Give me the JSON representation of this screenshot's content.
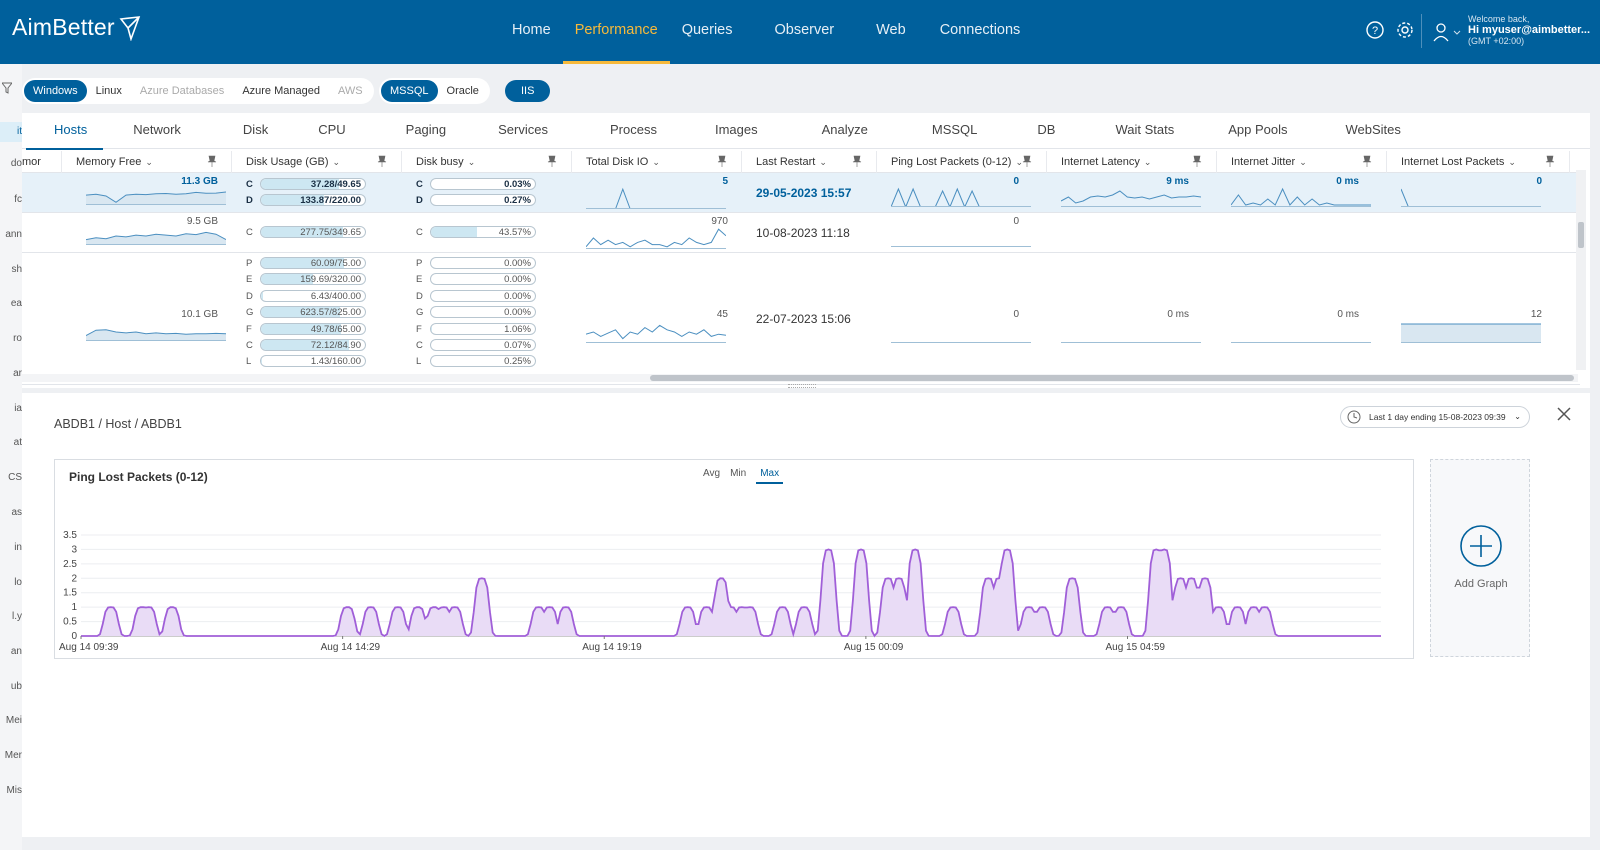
{
  "brand": "AimBetter",
  "nav": [
    "Home",
    "Performance",
    "Queries",
    "Observer",
    "Web",
    "Connections"
  ],
  "user": {
    "welcome": "Welcome back,",
    "name": "Hi myuser@aimbetter...",
    "tz": "(GMT +02:00)"
  },
  "left_stubs": [
    "it",
    "do",
    "fc",
    "ann",
    "sh",
    "ea",
    "ro",
    "ar",
    "ia",
    "at",
    "CS",
    "as",
    "in",
    "lo",
    "l.y",
    "an",
    "ub",
    "Mei",
    "Mer",
    "Mis"
  ],
  "os_pills": [
    "Windows",
    "Linux",
    "Azure Databases",
    "Azure Managed",
    "AWS"
  ],
  "db_pills": [
    "MSSQL",
    "Oracle"
  ],
  "iis_pill": "IIS",
  "tabs": [
    "Hosts",
    "Network",
    "Disk",
    "CPU",
    "Paging",
    "Services",
    "Process",
    "Images",
    "Analyze",
    "MSSQL",
    "DB",
    "Wait Stats",
    "App Pools",
    "WebSites"
  ],
  "columns": [
    "mor",
    "Memory Free",
    "Disk Usage (GB)",
    "Disk busy",
    "Total Disk IO",
    "Last Restart",
    "Ping Lost Packets (0-12)",
    "Internet Latency",
    "Internet Jitter",
    "Internet Lost Packets"
  ],
  "rows": [
    {
      "memory": "11.3 GB",
      "disks": [
        {
          "d": "C",
          "v": "37.28/49.65",
          "p": 0.75
        },
        {
          "d": "D",
          "v": "133.87/220.00",
          "p": 0.61
        }
      ],
      "busy": [
        {
          "d": "C",
          "v": "0.03%",
          "p": 0.0
        },
        {
          "d": "D",
          "v": "0.27%",
          "p": 0.0
        }
      ],
      "io": "5",
      "restart": "29-05-2023 15:57",
      "ping": "0",
      "latency": "9 ms",
      "jitter": "0 ms",
      "lost": "0"
    },
    {
      "memory": "9.5 GB",
      "disks": [
        {
          "d": "C",
          "v": "277.75/349.65",
          "p": 0.79
        }
      ],
      "busy": [
        {
          "d": "C",
          "v": "43.57%",
          "p": 0.44
        }
      ],
      "io": "970",
      "restart": "10-08-2023 11:18",
      "ping": "0",
      "latency": "",
      "jitter": "",
      "lost": ""
    },
    {
      "memory": "10.1 GB",
      "disks": [
        {
          "d": "P",
          "v": "60.09/75.00",
          "p": 0.8
        },
        {
          "d": "E",
          "v": "159.69/320.00",
          "p": 0.5
        },
        {
          "d": "D",
          "v": "6.43/400.00",
          "p": 0.02
        },
        {
          "d": "G",
          "v": "623.57/825.00",
          "p": 0.76
        },
        {
          "d": "F",
          "v": "49.78/65.00",
          "p": 0.77
        },
        {
          "d": "C",
          "v": "72.12/84.90",
          "p": 0.85
        },
        {
          "d": "L",
          "v": "1.43/160.00",
          "p": 0.01
        }
      ],
      "busy": [
        {
          "d": "P",
          "v": "0.00%",
          "p": 0.0
        },
        {
          "d": "E",
          "v": "0.00%",
          "p": 0.0
        },
        {
          "d": "D",
          "v": "0.00%",
          "p": 0.0
        },
        {
          "d": "G",
          "v": "0.00%",
          "p": 0.0
        },
        {
          "d": "F",
          "v": "1.06%",
          "p": 0.01
        },
        {
          "d": "C",
          "v": "0.07%",
          "p": 0.0
        },
        {
          "d": "L",
          "v": "0.25%",
          "p": 0.0
        }
      ],
      "io": "45",
      "restart": "22-07-2023 15:06",
      "ping": "0",
      "latency": "0 ms",
      "jitter": "0 ms",
      "lost": "12"
    }
  ],
  "detail": {
    "breadcrumb": "ABDB1 / Host / ABDB1",
    "range": "Last 1 day ending  15-08-2023 09:39",
    "add_graph": "Add Graph",
    "agg": [
      "Avg",
      "Min",
      "Max"
    ],
    "agg_selected": "Max"
  },
  "colors": {
    "brand": "#00609c",
    "accent": "#f6b93b",
    "series": "#a05fd8"
  },
  "chart_data": {
    "type": "area",
    "title": "Ping Lost Packets (0-12)",
    "ylim": [
      0,
      3.5
    ],
    "yticks": [
      0,
      0.5,
      1,
      1.5,
      2,
      2.5,
      3,
      3.5
    ],
    "xtick_labels": [
      "Aug 14 09:39",
      "Aug 14 14:29",
      "Aug 14 19:19",
      "Aug 15 00:09",
      "Aug 15 04:59"
    ],
    "x": [
      0,
      0.12,
      0.28,
      0.5,
      0.7,
      0.9,
      1.25,
      1.42,
      1.55,
      1.75,
      2.25,
      2.4,
      2.55,
      2.75,
      3.2,
      3.4,
      3.55,
      3.72,
      3.85,
      4.05,
      4.2,
      4.35,
      4.5,
      4.7,
      4.82,
      4.95,
      5.05,
      5.25,
      5.35,
      5.65,
      5.8,
      5.95,
      6.05,
      6.2,
      6.3,
      6.5,
      6.65,
      6.8,
      6.95,
      7.1,
      7.25,
      7.4,
      7.55,
      7.7,
      7.85,
      8.05,
      8.15,
      8.3,
      8.45,
      8.55,
      8.7,
      8.85,
      9.0,
      9.15,
      9.3,
      9.45,
      9.6,
      9.75,
      9.9,
      10.0,
      10.15,
      10.3,
      10.45,
      10.6,
      10.75,
      10.9,
      11.05,
      11.15,
      11.25,
      11.35,
      11.45,
      11.55,
      11.65,
      11.75,
      11.85,
      11.95,
      12.05,
      12.15,
      12.25,
      12.35,
      12.45,
      12.55,
      12.65,
      12.75,
      12.85,
      12.95,
      13.05,
      13.15,
      13.25,
      13.35,
      13.45,
      13.55,
      13.65,
      13.75,
      13.85,
      13.95,
      14.05,
      14.15,
      14.25,
      14.35,
      14.45,
      14.55,
      14.65,
      14.75,
      14.85,
      14.95,
      15.05,
      15.15,
      15.25,
      15.35,
      15.45,
      15.55,
      15.65,
      15.75,
      15.85,
      15.95,
      16.05,
      16.15,
      16.25,
      16.35,
      16.45,
      16.55,
      16.65,
      16.75,
      16.85,
      16.95,
      17.05,
      17.15,
      17.25,
      17.35,
      17.45,
      17.55,
      17.65,
      17.75,
      17.85,
      17.95,
      18.05,
      18.15,
      18.25,
      18.35,
      18.45,
      18.55,
      18.65,
      18.75,
      18.85,
      18.95,
      19.05,
      19.15,
      19.25,
      19.35,
      19.45,
      19.55,
      19.65,
      19.75,
      19.85,
      19.95,
      20.05,
      20.15,
      20.25,
      20.35,
      20.45,
      20.55,
      20.65,
      20.75,
      20.85,
      20.95,
      21.05,
      21.15,
      21.25,
      21.35,
      21.45,
      21.55,
      21.65,
      21.75,
      21.85,
      21.95,
      22.05,
      22.15,
      22.25,
      22.35,
      22.45,
      22.55,
      22.65,
      22.75,
      22.85,
      22.95,
      23.05,
      23.15,
      23.25,
      23.35,
      23.45,
      23.55,
      23.65,
      23.75,
      23.85,
      23.95,
      24.0
    ],
    "y_peaks": [
      {
        "x": 0.55,
        "y": 1
      },
      {
        "x": 1.12,
        "y": 1
      },
      {
        "x": 1.25,
        "y": 1
      },
      {
        "x": 1.68,
        "y": 1
      },
      {
        "x": 4.92,
        "y": 1
      },
      {
        "x": 5.35,
        "y": 1
      },
      {
        "x": 5.85,
        "y": 1
      },
      {
        "x": 6.22,
        "y": 1
      },
      {
        "x": 6.52,
        "y": 1
      },
      {
        "x": 6.7,
        "y": 1
      },
      {
        "x": 6.9,
        "y": 1
      },
      {
        "x": 7.4,
        "y": 2
      },
      {
        "x": 8.45,
        "y": 1
      },
      {
        "x": 8.65,
        "y": 1
      },
      {
        "x": 8.95,
        "y": 1
      },
      {
        "x": 11.2,
        "y": 1
      },
      {
        "x": 11.55,
        "y": 1
      },
      {
        "x": 11.82,
        "y": 2
      },
      {
        "x": 12.0,
        "y": 1
      },
      {
        "x": 12.2,
        "y": 1
      },
      {
        "x": 12.35,
        "y": 1
      },
      {
        "x": 12.95,
        "y": 1
      },
      {
        "x": 13.35,
        "y": 1
      },
      {
        "x": 13.8,
        "y": 3
      },
      {
        "x": 14.4,
        "y": 3
      },
      {
        "x": 14.9,
        "y": 2
      },
      {
        "x": 15.1,
        "y": 2
      },
      {
        "x": 15.4,
        "y": 3
      },
      {
        "x": 16.1,
        "y": 1
      },
      {
        "x": 16.75,
        "y": 2
      },
      {
        "x": 16.95,
        "y": 2
      },
      {
        "x": 17.1,
        "y": 3
      },
      {
        "x": 17.5,
        "y": 1
      },
      {
        "x": 17.75,
        "y": 1
      },
      {
        "x": 18.3,
        "y": 2
      },
      {
        "x": 18.95,
        "y": 1
      },
      {
        "x": 19.2,
        "y": 1
      },
      {
        "x": 19.85,
        "y": 3
      },
      {
        "x": 20.0,
        "y": 3
      },
      {
        "x": 20.3,
        "y": 2
      },
      {
        "x": 20.5,
        "y": 2
      },
      {
        "x": 20.75,
        "y": 2
      },
      {
        "x": 21.0,
        "y": 1
      },
      {
        "x": 21.35,
        "y": 1
      },
      {
        "x": 21.65,
        "y": 1
      },
      {
        "x": 21.85,
        "y": 1
      }
    ],
    "x_range_hours": [
      0,
      24
    ]
  }
}
